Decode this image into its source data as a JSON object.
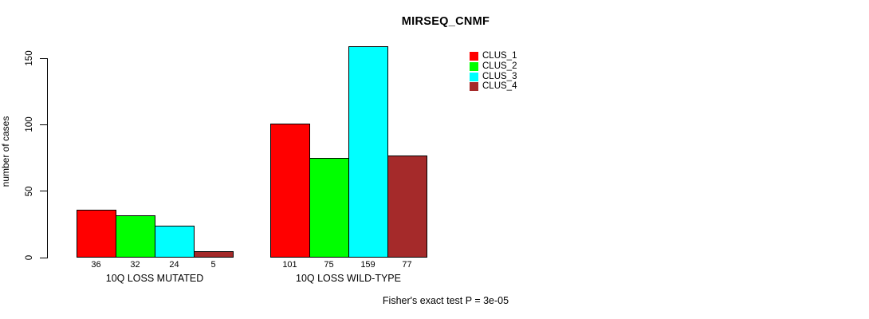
{
  "chart_data": {
    "type": "bar",
    "title": "MIRSEQ_CNMF",
    "ylabel": "number of cases",
    "xlabel": "",
    "categories": [
      "10Q LOSS MUTATED",
      "10Q LOSS WILD-TYPE"
    ],
    "series": [
      {
        "name": "CLUS_1",
        "color": "#ff0000",
        "values": [
          36,
          101
        ]
      },
      {
        "name": "CLUS_2",
        "color": "#00ff00",
        "values": [
          32,
          75
        ]
      },
      {
        "name": "CLUS_3",
        "color": "#00ffff",
        "values": [
          24,
          159
        ]
      },
      {
        "name": "CLUS_4",
        "color": "#a52a2a",
        "values": [
          5,
          77
        ]
      }
    ],
    "yticks": [
      0,
      50,
      100,
      150
    ],
    "ylim": [
      0,
      166
    ],
    "bar_value_labels": [
      [
        36,
        32,
        24,
        5
      ],
      [
        101,
        75,
        159,
        77
      ]
    ],
    "legend": {
      "position": "top-right",
      "entries": [
        "CLUS_1",
        "CLUS_2",
        "CLUS_3",
        "CLUS_4"
      ]
    },
    "annotation": "Fisher's exact test P = 3e-05",
    "grid": false,
    "background": "#ffffff"
  }
}
